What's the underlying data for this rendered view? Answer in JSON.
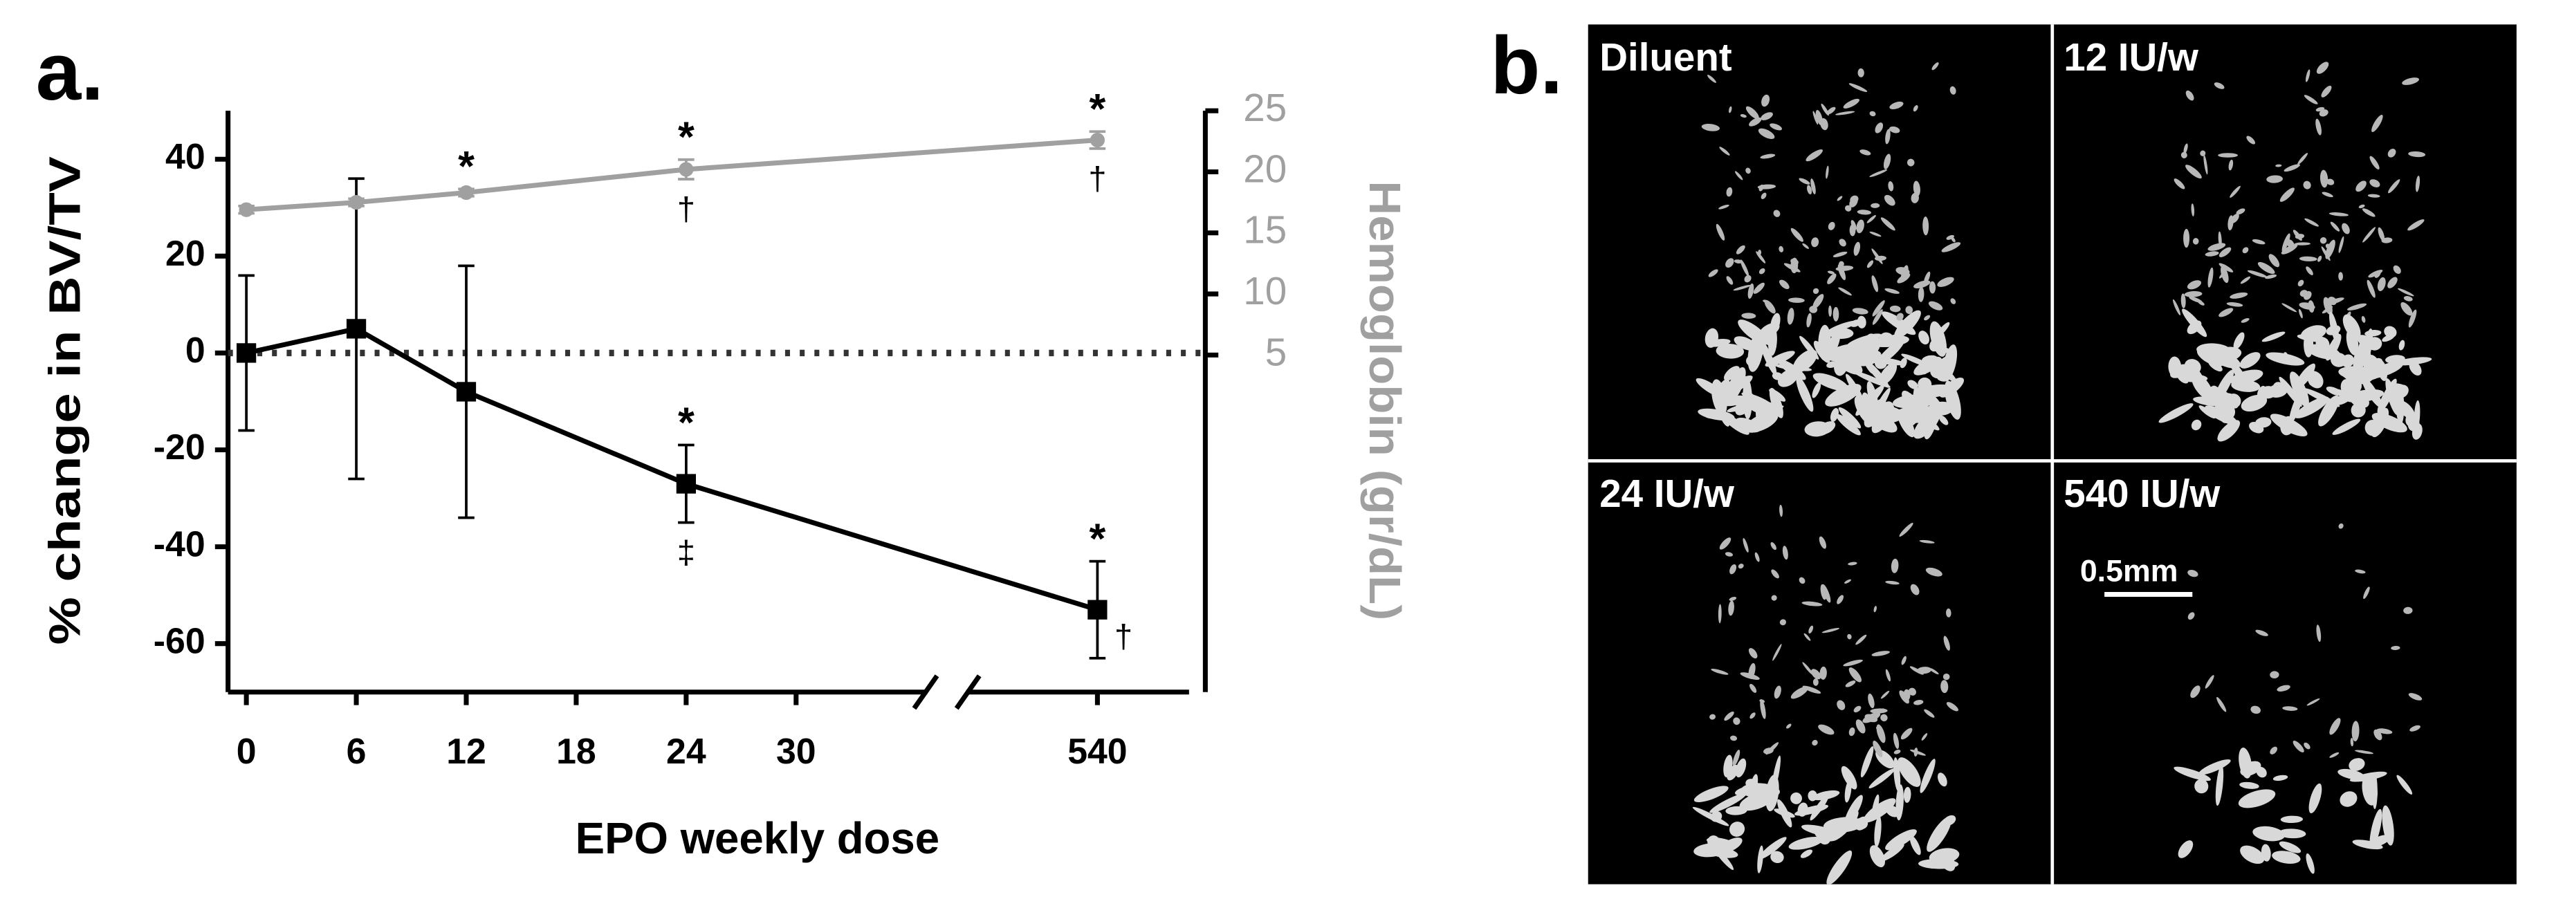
{
  "chart_data": {
    "type": "line",
    "panel_label": "a.",
    "x_label": "EPO weekly dose",
    "y_label": "% change in BV/TV",
    "y2_label": "Hemoglobin (gr/dL)",
    "xlim": [
      -1,
      545
    ],
    "xticks": [
      0,
      6,
      12,
      18,
      24,
      30,
      540
    ],
    "xbreak": [
      30,
      540
    ],
    "ylim": [
      -70,
      50
    ],
    "yticks": [
      -60,
      -40,
      -20,
      0,
      20,
      40
    ],
    "y2lim": [
      -22.6,
      25
    ],
    "y2ticks": [
      5,
      10,
      15,
      20,
      25
    ],
    "hline": 0,
    "series": [
      {
        "color": "#000000",
        "marker": "square",
        "x": [
          0,
          6,
          12,
          24,
          540
        ],
        "values": [
          0,
          5,
          -8,
          -27,
          -53
        ],
        "errors": [
          16,
          31,
          26,
          8,
          10
        ],
        "above_labels": [
          null,
          null,
          null,
          "*",
          "*"
        ],
        "below_labels": [
          null,
          null,
          null,
          "‡",
          null
        ],
        "right_labels": [
          null,
          null,
          null,
          null,
          "†"
        ]
      },
      {
        "color": "#a0a0a0",
        "marker": "circle",
        "axis": "y2",
        "x": [
          0,
          6,
          12,
          24,
          540
        ],
        "values": [
          16.9,
          17.5,
          18.3,
          20.2,
          22.6
        ],
        "errors": [
          0.3,
          0.3,
          0.3,
          0.8,
          0.7
        ],
        "above_labels": [
          null,
          null,
          "*",
          "*",
          "*"
        ],
        "below_labels": [
          null,
          null,
          null,
          "†",
          "†"
        ]
      }
    ]
  },
  "panel_b": {
    "panel_label": "b.",
    "images": [
      "Diluent",
      "12 IU/w",
      "24 IU/w",
      "540 IU/w"
    ],
    "scale_bar": "0.5mm"
  }
}
